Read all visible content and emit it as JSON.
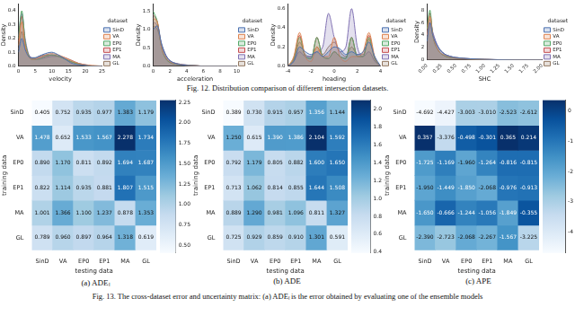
{
  "chart_data": [
    {
      "type": "density",
      "x_label": "velocity",
      "y_label": "Density",
      "legend": "right",
      "legend_title": "dataset",
      "grid": false,
      "x": [
        0,
        1,
        2,
        3,
        4,
        5,
        6,
        8,
        10,
        12,
        14,
        16,
        18,
        20,
        22,
        25
      ],
      "xlim": [
        0,
        25
      ],
      "xticks": [
        0,
        5,
        10,
        15,
        20,
        25
      ],
      "ylim": [
        0,
        0.45
      ],
      "yticks": [
        {
          "value": 0,
          "label": "0.0"
        },
        0.1,
        0.2,
        0.3,
        0.4
      ],
      "series": [
        {
          "name": "SinD",
          "color": "#4c72b0",
          "values": [
            0.1,
            0.2,
            0.12,
            0.07,
            0.06,
            0.06,
            0.07,
            0.09,
            0.1,
            0.08,
            0.05,
            0.02,
            0.01,
            0.005,
            0,
            0
          ]
        },
        {
          "name": "VA",
          "color": "#dd8452",
          "values": [
            0.15,
            0.32,
            0.15,
            0.07,
            0.05,
            0.05,
            0.06,
            0.08,
            0.09,
            0.08,
            0.06,
            0.04,
            0.02,
            0.01,
            0.005,
            0
          ]
        },
        {
          "name": "EP0",
          "color": "#55a868",
          "values": [
            0.2,
            0.4,
            0.18,
            0.08,
            0.05,
            0.05,
            0.05,
            0.07,
            0.08,
            0.07,
            0.05,
            0.03,
            0.015,
            0.005,
            0,
            0
          ]
        },
        {
          "name": "EP1",
          "color": "#c44e52",
          "values": [
            0.18,
            0.36,
            0.17,
            0.08,
            0.05,
            0.05,
            0.06,
            0.07,
            0.08,
            0.07,
            0.05,
            0.03,
            0.015,
            0.005,
            0,
            0
          ]
        },
        {
          "name": "MA",
          "color": "#8172b3",
          "values": [
            0.22,
            0.38,
            0.2,
            0.09,
            0.06,
            0.05,
            0.05,
            0.06,
            0.07,
            0.07,
            0.06,
            0.04,
            0.02,
            0.01,
            0,
            0
          ]
        },
        {
          "name": "GL",
          "color": "#937860",
          "values": [
            0.12,
            0.25,
            0.14,
            0.08,
            0.06,
            0.06,
            0.07,
            0.08,
            0.08,
            0.07,
            0.05,
            0.03,
            0.015,
            0.005,
            0,
            0
          ]
        }
      ]
    },
    {
      "type": "density",
      "x_label": "acceleration",
      "y_label": "Density",
      "legend": "right",
      "legend_title": "dataset",
      "grid": false,
      "x": [
        0,
        0.5,
        1,
        1.5,
        2,
        3,
        4,
        5,
        6,
        8,
        10
      ],
      "xlim": [
        0,
        10
      ],
      "xticks": [
        0,
        2,
        4,
        6,
        8,
        10
      ],
      "ylim": [
        0,
        1.7
      ],
      "yticks": [
        {
          "value": 0,
          "label": "0.0"
        },
        0.5,
        {
          "value": 1,
          "label": "1.0"
        },
        1.5
      ],
      "series": [
        {
          "name": "SinD",
          "color": "#4c72b0",
          "values": [
            1.0,
            1.1,
            0.6,
            0.3,
            0.15,
            0.05,
            0.02,
            0.01,
            0,
            0,
            0
          ]
        },
        {
          "name": "VA",
          "color": "#dd8452",
          "values": [
            1.3,
            1.2,
            0.5,
            0.25,
            0.12,
            0.05,
            0.02,
            0.01,
            0,
            0,
            0
          ]
        },
        {
          "name": "EP0",
          "color": "#55a868",
          "values": [
            1.5,
            1.2,
            0.5,
            0.2,
            0.1,
            0.04,
            0.02,
            0.01,
            0,
            0,
            0
          ]
        },
        {
          "name": "EP1",
          "color": "#c44e52",
          "values": [
            1.4,
            1.2,
            0.5,
            0.22,
            0.1,
            0.04,
            0.02,
            0.01,
            0,
            0,
            0
          ]
        },
        {
          "name": "MA",
          "color": "#8172b3",
          "values": [
            1.2,
            1.1,
            0.6,
            0.3,
            0.15,
            0.06,
            0.03,
            0.01,
            0,
            0,
            0
          ]
        },
        {
          "name": "GL",
          "color": "#937860",
          "values": [
            1.1,
            1.0,
            0.6,
            0.3,
            0.15,
            0.06,
            0.03,
            0.01,
            0,
            0,
            0
          ]
        }
      ]
    },
    {
      "type": "density",
      "x_label": "heading",
      "y_label": "Density",
      "legend": "right",
      "legend_title": "dataset",
      "grid": false,
      "x": [
        -4,
        -3.5,
        -3,
        -2.5,
        -2,
        -1.5,
        -1,
        -0.5,
        0,
        0.5,
        1,
        1.5,
        2,
        2.5,
        3,
        3.5,
        4
      ],
      "xlim": [
        -4,
        4
      ],
      "xticks": [
        -4,
        -2,
        0,
        2,
        4
      ],
      "ylim": [
        0,
        0.65
      ],
      "yticks": [
        {
          "value": 0,
          "label": "0.0"
        },
        0.2,
        0.4,
        0.6
      ],
      "series": [
        {
          "name": "SinD",
          "color": "#4c72b0",
          "values": [
            0,
            0.05,
            0.2,
            0.15,
            0.12,
            0.15,
            0.1,
            0.15,
            0.2,
            0.18,
            0.12,
            0.15,
            0.12,
            0.15,
            0.25,
            0.1,
            0
          ]
        },
        {
          "name": "VA",
          "color": "#dd8452",
          "values": [
            0,
            0.1,
            0.35,
            0.1,
            0.05,
            0.2,
            0.1,
            0.1,
            0.3,
            0.1,
            0.05,
            0.1,
            0.1,
            0.15,
            0.35,
            0.1,
            0
          ]
        },
        {
          "name": "EP0",
          "color": "#55a868",
          "values": [
            0,
            0.08,
            0.3,
            0.1,
            0.08,
            0.3,
            0.1,
            0.08,
            0.15,
            0.1,
            0.08,
            0.3,
            0.1,
            0.1,
            0.3,
            0.08,
            0
          ]
        },
        {
          "name": "EP1",
          "color": "#c44e52",
          "values": [
            0,
            0.08,
            0.32,
            0.1,
            0.08,
            0.3,
            0.1,
            0.08,
            0.15,
            0.1,
            0.08,
            0.3,
            0.1,
            0.1,
            0.32,
            0.08,
            0
          ]
        },
        {
          "name": "MA",
          "color": "#8172b3",
          "values": [
            0,
            0.05,
            0.15,
            0.1,
            0.1,
            0.15,
            0.2,
            0.55,
            0.3,
            0.15,
            0.2,
            0.6,
            0.2,
            0.1,
            0.15,
            0.05,
            0
          ]
        },
        {
          "name": "GL",
          "color": "#937860",
          "values": [
            0,
            0.06,
            0.25,
            0.12,
            0.1,
            0.2,
            0.12,
            0.2,
            0.25,
            0.15,
            0.1,
            0.2,
            0.12,
            0.12,
            0.28,
            0.08,
            0
          ]
        }
      ]
    },
    {
      "type": "density",
      "x_label": "SHC",
      "y_label": "Density",
      "legend": "right",
      "legend_title": "dataset",
      "grid": false,
      "x": [
        0,
        0.05,
        0.1,
        0.2,
        0.3,
        0.4,
        0.5,
        0.75,
        1,
        1.25,
        1.5,
        1.75,
        2
      ],
      "xlim": [
        0,
        2
      ],
      "xticks": [
        {
          "value": 0,
          "label": "0.00"
        },
        0.25,
        {
          "value": 0.5,
          "label": "0.50"
        },
        0.75,
        {
          "value": 1,
          "label": "1.00"
        },
        1.25,
        {
          "value": 1.5,
          "label": "1.50"
        },
        1.75,
        {
          "value": 2,
          "label": "2.00"
        }
      ],
      "ylim": [
        0,
        9
      ],
      "yticks": [
        0,
        2,
        4,
        6,
        8
      ],
      "series": [
        {
          "name": "SinD",
          "color": "#4c72b0",
          "values": [
            3,
            6,
            4,
            2,
            1,
            0.6,
            0.4,
            0.2,
            0.1,
            0.05,
            0.02,
            0.01,
            0
          ]
        },
        {
          "name": "VA",
          "color": "#dd8452",
          "values": [
            4,
            7,
            4,
            1.5,
            0.8,
            0.5,
            0.3,
            0.15,
            0.08,
            0.04,
            0.02,
            0.01,
            0
          ]
        },
        {
          "name": "EP0",
          "color": "#55a868",
          "values": [
            5,
            8,
            4,
            1.5,
            0.7,
            0.4,
            0.3,
            0.15,
            0.08,
            0.04,
            0.02,
            0.01,
            0
          ]
        },
        {
          "name": "EP1",
          "color": "#c44e52",
          "values": [
            5,
            7.5,
            4,
            1.5,
            0.7,
            0.4,
            0.3,
            0.15,
            0.08,
            0.04,
            0.02,
            0.01,
            0
          ]
        },
        {
          "name": "MA",
          "color": "#8172b3",
          "values": [
            4,
            6.5,
            4.5,
            2,
            1,
            0.6,
            0.4,
            0.2,
            0.1,
            0.05,
            0.02,
            0.01,
            0
          ]
        },
        {
          "name": "GL",
          "color": "#937860",
          "values": [
            3.5,
            6,
            4,
            2,
            1,
            0.6,
            0.4,
            0.2,
            0.1,
            0.05,
            0.02,
            0.01,
            0
          ]
        }
      ]
    },
    {
      "type": "heatmap",
      "title": "(a) ADEₗ",
      "x_label": "testing data",
      "y_label": "training data",
      "color": "Blues",
      "data_labels": true,
      "categories": [
        "SinD",
        "VA",
        "EP0",
        "EP1",
        "MA",
        "GL"
      ],
      "y_categories": [
        "SinD",
        "VA",
        "EP0",
        "EP1",
        "MA",
        "GL"
      ],
      "values": [
        [
          0.405,
          0.752,
          0.935,
          0.977,
          1.383,
          1.179
        ],
        [
          1.478,
          0.652,
          1.533,
          1.567,
          2.278,
          1.734
        ],
        [
          0.89,
          1.17,
          0.811,
          0.892,
          1.694,
          1.687
        ],
        [
          0.822,
          1.114,
          0.935,
          0.881,
          1.807,
          1.515
        ],
        [
          1.001,
          1.366,
          1.1,
          1.237,
          0.878,
          1.353
        ],
        [
          0.789,
          0.96,
          0.897,
          0.964,
          1.318,
          0.619
        ]
      ],
      "value_labels": [
        [
          "0.405",
          "0.752",
          "0.935",
          "0.977",
          "1.383",
          "1.179"
        ],
        [
          "1.478",
          "0.652",
          "1.533",
          "1.567",
          "2.278",
          "1.734"
        ],
        [
          "0.890",
          "1.170",
          "0.811",
          "0.892",
          "1.694",
          "1.687"
        ],
        [
          "0.822",
          "1.114",
          "0.935",
          "0.881",
          "1.807",
          "1.515"
        ],
        [
          "1.001",
          "1.366",
          "1.100",
          "1.237",
          "0.878",
          "1.353"
        ],
        [
          "0.789",
          "0.960",
          "0.897",
          "0.964",
          "1.318",
          "0.619"
        ]
      ],
      "colorbar_range": [
        0.405,
        2.278
      ],
      "colorbar_ticks": [
        {
          "value": 0.5,
          "label": "0.50"
        },
        0.75,
        {
          "value": 1,
          "label": "1.00"
        },
        1.25,
        {
          "value": 1.5,
          "label": "1.50"
        },
        1.75,
        {
          "value": 2,
          "label": "2.00"
        },
        2.25
      ]
    },
    {
      "type": "heatmap",
      "title": "(b) ADE",
      "x_label": "testing data",
      "y_label": "training data",
      "color": "Blues",
      "data_labels": true,
      "categories": [
        "SinD",
        "VA",
        "EP0",
        "EP1",
        "MA",
        "GL"
      ],
      "y_categories": [
        "SinD",
        "VA",
        "EP0",
        "EP1",
        "MA",
        "GL"
      ],
      "values": [
        [
          0.389,
          0.73,
          0.915,
          0.957,
          1.356,
          1.144
        ],
        [
          1.25,
          0.615,
          1.39,
          1.386,
          2.104,
          1.592
        ],
        [
          0.792,
          1.179,
          0.805,
          0.882,
          1.6,
          1.65
        ],
        [
          0.713,
          1.062,
          0.814,
          0.855,
          1.644,
          1.508
        ],
        [
          0.889,
          1.29,
          0.981,
          1.096,
          0.811,
          1.327
        ],
        [
          0.725,
          0.929,
          0.859,
          0.91,
          1.301,
          0.591
        ]
      ],
      "value_labels": [
        [
          "0.389",
          "0.730",
          "0.915",
          "0.957",
          "1.356",
          "1.144"
        ],
        [
          "1.250",
          "0.615",
          "1.390",
          "1.386",
          "2.104",
          "1.592"
        ],
        [
          "0.792",
          "1.179",
          "0.805",
          "0.882",
          "1.600",
          "1.650"
        ],
        [
          "0.713",
          "1.062",
          "0.814",
          "0.855",
          "1.644",
          "1.508"
        ],
        [
          "0.889",
          "1.290",
          "0.981",
          "1.096",
          "0.811",
          "1.327"
        ],
        [
          "0.725",
          "0.929",
          "0.859",
          "0.910",
          "1.301",
          "0.591"
        ]
      ],
      "colorbar_range": [
        0.389,
        2.104
      ],
      "colorbar_ticks": [
        0.4,
        0.6,
        0.8,
        {
          "value": 1,
          "label": "1.0"
        },
        1.2,
        1.4,
        1.6,
        1.8,
        {
          "value": 2,
          "label": "2.0"
        }
      ]
    },
    {
      "type": "heatmap",
      "title": "(c) APE",
      "x_label": "testing data",
      "y_label": "training data",
      "color": "Blues",
      "data_labels": true,
      "categories": [
        "SinD",
        "VA",
        "EP0",
        "EP1",
        "MA",
        "GL"
      ],
      "y_categories": [
        "SinD",
        "VA",
        "EP0",
        "EP1",
        "MA",
        "GL"
      ],
      "values": [
        [
          -4.692,
          -4.427,
          -3.003,
          -3.01,
          -2.523,
          -2.612
        ],
        [
          0.357,
          -3.376,
          -0.498,
          -0.301,
          0.365,
          0.214
        ],
        [
          -1.725,
          -1.169,
          -1.96,
          -1.264,
          -0.816,
          -0.815
        ],
        [
          -1.95,
          -1.449,
          -1.85,
          -2.068,
          -0.976,
          -0.913
        ],
        [
          -1.65,
          -0.666,
          -1.244,
          -1.056,
          -1.849,
          -0.355
        ],
        [
          -2.39,
          -2.723,
          -2.068,
          -2.267,
          -1.567,
          -3.225
        ]
      ],
      "value_labels": [
        [
          "-4.692",
          "-4.427",
          "-3.003",
          "-3.010",
          "-2.523",
          "-2.612"
        ],
        [
          "0.357",
          "-3.376",
          "-0.498",
          "-0.301",
          "0.365",
          "0.214"
        ],
        [
          "-1.725",
          "-1.169",
          "-1.960",
          "-1.264",
          "-0.816",
          "-0.815"
        ],
        [
          "-1.950",
          "-1.449",
          "-1.850",
          "-2.068",
          "-0.976",
          "-0.913"
        ],
        [
          "-1.650",
          "-0.666",
          "-1.244",
          "-1.056",
          "-1.849",
          "-0.355"
        ],
        [
          "-2.390",
          "-2.723",
          "-2.068",
          "-2.267",
          "-1.567",
          "-3.225"
        ]
      ],
      "colorbar_range": [
        -4.692,
        0.365
      ],
      "colorbar_ticks": [
        -4,
        -3,
        -2,
        -1,
        0
      ]
    }
  ],
  "captions": [
    "Fig. 12. Distribution comparison of different intersection datasets.",
    "Fig. 13. The cross-dataset error and uncertainty matrix: (a) ADEₗ is the error obtained by evaluating one of the ensemble models"
  ]
}
